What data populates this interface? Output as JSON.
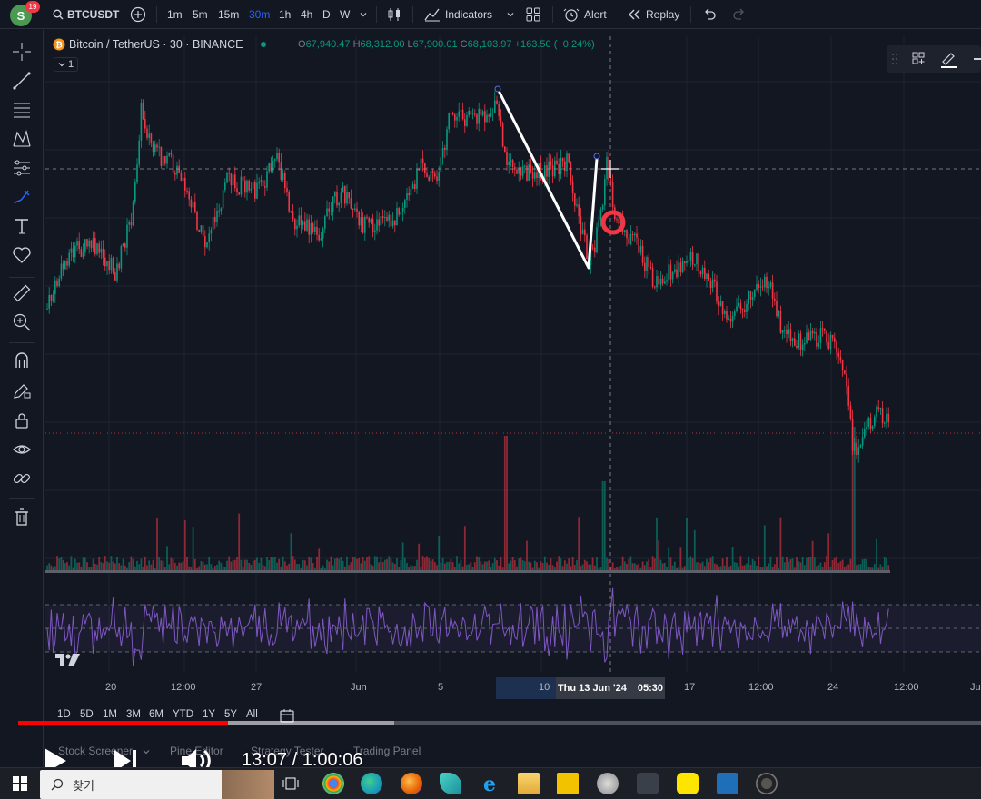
{
  "topbar": {
    "avatar_letter": "S",
    "notification_count": "19",
    "symbol": "BTCUSDT",
    "intervals": [
      "1m",
      "5m",
      "15m",
      "30m",
      "1h",
      "4h",
      "D",
      "W"
    ],
    "active_interval": "30m",
    "indicators_label": "Indicators",
    "alert_label": "Alert",
    "replay_label": "Replay"
  },
  "legend": {
    "title": "Bitcoin / TetherUS · 30 · BINANCE",
    "open_key": "O",
    "open": "67,940.47",
    "high_key": "H",
    "high": "68,312.00",
    "low_key": "L",
    "low": "67,900.01",
    "close_key": "C",
    "close": "68,103.97",
    "change": "+163.50 (+0.24%)",
    "collapsed_count": "1"
  },
  "x_axis": {
    "labels": [
      "20",
      "12:00",
      "27",
      "Jun",
      "5",
      "10",
      "17",
      "12:00",
      "24",
      "12:00",
      "Ju"
    ],
    "crosshair_date": "Thu 13 Jun '24",
    "crosshair_time": "05:30"
  },
  "ranges": [
    "1D",
    "5D",
    "1M",
    "3M",
    "6M",
    "YTD",
    "1Y",
    "5Y",
    "All"
  ],
  "bottom_tabs": [
    "Stock Screener",
    "Pine Editor",
    "Strategy Tester",
    "Trading Panel"
  ],
  "video": {
    "timecode": "13:07 / 1:00:06",
    "progress": 0.218
  },
  "taskbar": {
    "search_placeholder": "찾기"
  },
  "colors": {
    "up": "#089981",
    "down": "#f23645",
    "accent": "#2962ff",
    "rsi": "#7e57c2",
    "background": "#131722"
  }
}
